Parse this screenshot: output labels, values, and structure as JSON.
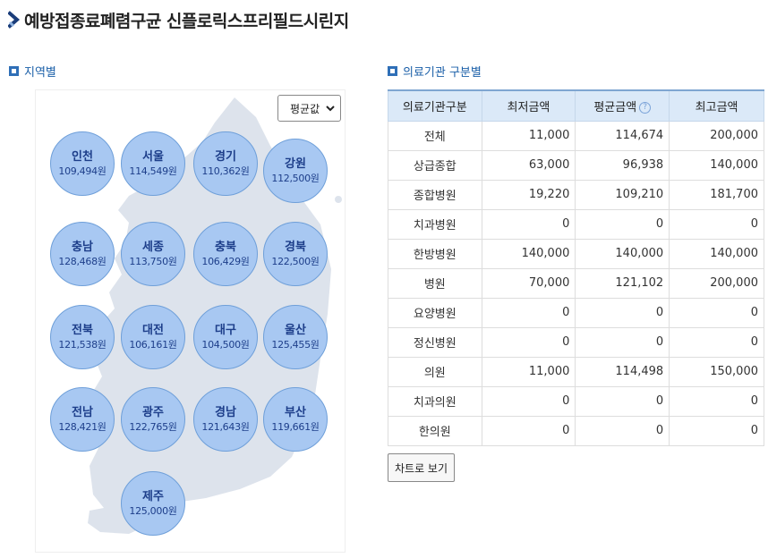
{
  "page": {
    "title": "예방접종료폐렴구균 신플로릭스프리필드시린지"
  },
  "region": {
    "heading": "지역별",
    "select_value": "평균값",
    "unit_suffix": "원",
    "bubbles": [
      {
        "name": "인천",
        "amount": "109,494원"
      },
      {
        "name": "서울",
        "amount": "114,549원"
      },
      {
        "name": "경기",
        "amount": "110,362원"
      },
      {
        "name": "강원",
        "amount": "112,500원"
      },
      {
        "name": "충남",
        "amount": "128,468원"
      },
      {
        "name": "세종",
        "amount": "113,750원"
      },
      {
        "name": "충북",
        "amount": "106,429원"
      },
      {
        "name": "경북",
        "amount": "122,500원"
      },
      {
        "name": "전북",
        "amount": "121,538원"
      },
      {
        "name": "대전",
        "amount": "106,161원"
      },
      {
        "name": "대구",
        "amount": "104,500원"
      },
      {
        "name": "울산",
        "amount": "125,455원"
      },
      {
        "name": "전남",
        "amount": "128,421원"
      },
      {
        "name": "광주",
        "amount": "122,765원"
      },
      {
        "name": "경남",
        "amount": "121,643원"
      },
      {
        "name": "부산",
        "amount": "119,661원"
      },
      {
        "name": "제주",
        "amount": "125,000원"
      }
    ]
  },
  "institution": {
    "heading": "의료기관 구분별",
    "columns": [
      "의료기관구분",
      "최저금액",
      "평균금액",
      "최고금액"
    ],
    "help_icon": "?",
    "rows": [
      {
        "label": "전체",
        "min": "11,000",
        "avg": "114,674",
        "max": "200,000"
      },
      {
        "label": "상급종합",
        "min": "63,000",
        "avg": "96,938",
        "max": "140,000"
      },
      {
        "label": "종합병원",
        "min": "19,220",
        "avg": "109,210",
        "max": "181,700"
      },
      {
        "label": "치과병원",
        "min": "0",
        "avg": "0",
        "max": "0"
      },
      {
        "label": "한방병원",
        "min": "140,000",
        "avg": "140,000",
        "max": "140,000"
      },
      {
        "label": "병원",
        "min": "70,000",
        "avg": "121,102",
        "max": "200,000"
      },
      {
        "label": "요양병원",
        "min": "0",
        "avg": "0",
        "max": "0"
      },
      {
        "label": "정신병원",
        "min": "0",
        "avg": "0",
        "max": "0"
      },
      {
        "label": "의원",
        "min": "11,000",
        "avg": "114,498",
        "max": "150,000"
      },
      {
        "label": "치과의원",
        "min": "0",
        "avg": "0",
        "max": "0"
      },
      {
        "label": "한의원",
        "min": "0",
        "avg": "0",
        "max": "0"
      }
    ],
    "chart_button": "차트로 보기"
  },
  "icons": {
    "title_arrow": "chevron-right-icon",
    "section_marker": "square-bullet-icon",
    "select_chevron": "chevron-down-icon",
    "help": "question-circle-icon"
  },
  "colors": {
    "bubble_fill": "#a8c8f2",
    "bubble_text": "#1d3e8a",
    "header_bg": "#dbe9f8",
    "accent": "#2f6fb7"
  }
}
